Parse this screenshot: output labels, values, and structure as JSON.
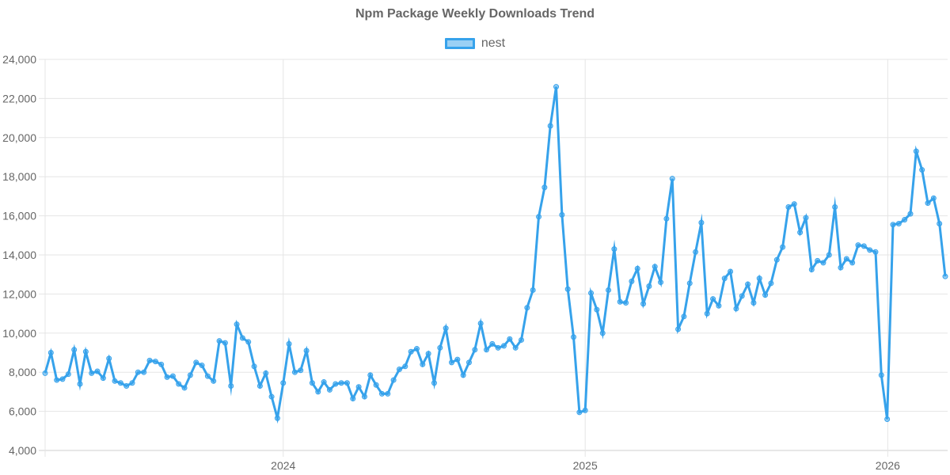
{
  "title": "Npm Package Weekly Downloads Trend",
  "legend": {
    "label": "nest",
    "stroke": "#36a2eb",
    "fill": "#9ad0f5"
  },
  "chart_data": {
    "type": "line",
    "title": "Npm Package Weekly Downloads Trend",
    "xlabel": "",
    "ylabel": "",
    "ylim": [
      4000,
      24000
    ],
    "yticks": [
      "4,000",
      "6,000",
      "8,000",
      "10,000",
      "12,000",
      "14,000",
      "16,000",
      "18,000",
      "20,000",
      "22,000",
      "24,000"
    ],
    "xticks": [
      {
        "label": "2024",
        "index": 41.0
      },
      {
        "label": "2025",
        "index": 93.0
      },
      {
        "label": "2026",
        "index": 145.1
      }
    ],
    "grid": true,
    "legend_position": "top",
    "series": [
      {
        "name": "nest",
        "color": "#36a2eb",
        "values": [
          7950,
          9000,
          7600,
          7650,
          7900,
          9150,
          7400,
          9050,
          7950,
          8050,
          7700,
          8700,
          7550,
          7450,
          7300,
          7450,
          8000,
          8000,
          8600,
          8550,
          8400,
          7750,
          7800,
          7400,
          7200,
          7850,
          8500,
          8350,
          7800,
          7550,
          9600,
          9500,
          7300,
          10450,
          9750,
          9550,
          8300,
          7300,
          7950,
          6750,
          5650,
          7450,
          9450,
          8000,
          8100,
          9100,
          7450,
          7000,
          7500,
          7100,
          7400,
          7450,
          7450,
          6650,
          7250,
          6750,
          7850,
          7350,
          6900,
          6900,
          7600,
          8150,
          8300,
          9050,
          9200,
          8400,
          8950,
          7450,
          9250,
          10250,
          8500,
          8650,
          7850,
          8500,
          9150,
          10500,
          9150,
          9450,
          9250,
          9350,
          9700,
          9250,
          9650,
          11300,
          12200,
          15950,
          17450,
          20600,
          22600,
          16050,
          12250,
          9800,
          5950,
          6050,
          12050,
          11200,
          10000,
          12200,
          14300,
          11600,
          11550,
          12650,
          13300,
          11500,
          12400,
          13400,
          12600,
          15850,
          17900,
          10200,
          10850,
          12550,
          14150,
          15650,
          11000,
          11750,
          11400,
          12800,
          13150,
          11250,
          11900,
          12500,
          11550,
          12800,
          11950,
          12550,
          13750,
          14400,
          16450,
          16600,
          15150,
          15900,
          13250,
          13700,
          13600,
          14000,
          16450,
          13350,
          13800,
          13600,
          14500,
          14450,
          14250,
          14150,
          7850,
          5600,
          15550,
          15600,
          15800,
          16100,
          19300,
          18350,
          16650,
          16900,
          15600,
          12900
        ]
      }
    ]
  }
}
